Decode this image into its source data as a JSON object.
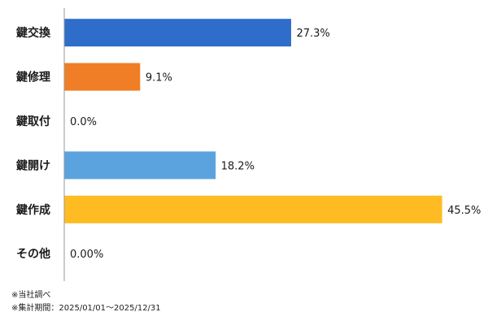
{
  "chart_data": {
    "type": "bar",
    "orientation": "horizontal",
    "categories": [
      "鍵交換",
      "鍵修理",
      "鍵取付",
      "鍵開け",
      "鍵作成",
      "その他"
    ],
    "values": [
      27.3,
      9.1,
      0.0,
      18.2,
      45.5,
      0.0
    ],
    "value_labels": [
      "27.3%",
      "9.1%",
      "0.0%",
      "18.2%",
      "45.5%",
      "0.00%"
    ],
    "colors": [
      "#2E6DC9",
      "#F07E26",
      "#A0A0A0",
      "#5BA3DE",
      "#FEBC22",
      "#A0A0A0"
    ],
    "xlim": [
      0,
      50
    ],
    "grid": false,
    "legend": "none"
  },
  "notes": {
    "source": "※当社調べ",
    "period": "※集計期間：2025/01/01～2025/12/31"
  }
}
